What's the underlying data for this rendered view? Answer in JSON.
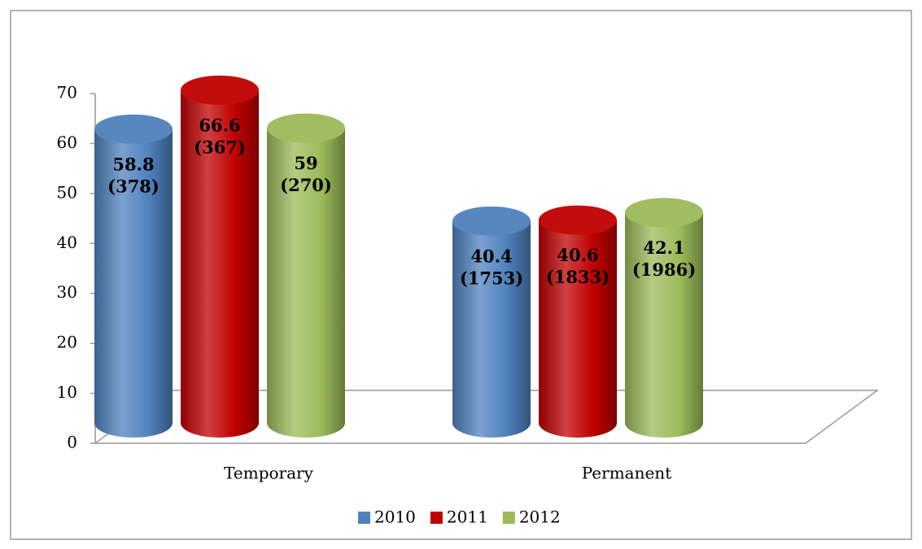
{
  "chart_data": {
    "type": "bar3d",
    "categories": [
      "Temporary",
      "Permanent"
    ],
    "series": [
      {
        "name": "2010",
        "color": "#4f81bd",
        "values": [
          58.8,
          40.4
        ],
        "value_labels": [
          [
            "58.8",
            "(378)"
          ],
          [
            "40.4",
            "(1753)"
          ]
        ]
      },
      {
        "name": "2011",
        "color": "#c00000",
        "values": [
          66.6,
          40.6
        ],
        "value_labels": [
          [
            "66.6",
            "(367)"
          ],
          [
            "40.6",
            "(1833)"
          ]
        ]
      },
      {
        "name": "2012",
        "color": "#9bbb59",
        "values": [
          59,
          42.1
        ],
        "value_labels": [
          [
            "59",
            "(270)"
          ],
          [
            "42.1",
            "(1986)"
          ]
        ]
      }
    ],
    "ylim": [
      0,
      70
    ],
    "yticks": [
      0,
      10,
      20,
      30,
      40,
      50,
      60,
      70
    ],
    "legend": "bottom"
  }
}
